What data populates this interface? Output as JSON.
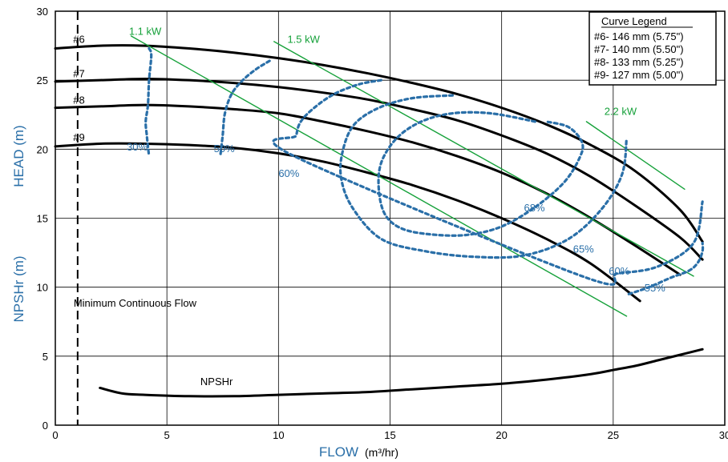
{
  "chart_data": {
    "type": "line",
    "title": "",
    "xlabel": "FLOW",
    "xlabel_unit": "(m³/hr)",
    "ylabel_head": "HEAD (m)",
    "ylabel_npsh": "NPSHr (m)",
    "xlim": [
      0,
      30
    ],
    "ylim": [
      0,
      30
    ],
    "x_ticks": [
      "0",
      "5",
      "10",
      "15",
      "20",
      "25",
      "30"
    ],
    "y_ticks": [
      "0",
      "5",
      "10",
      "15",
      "20",
      "25",
      "30"
    ],
    "grid": true,
    "legend": {
      "title": "Curve Legend",
      "placement": "top-right",
      "entries": [
        "#6- 146 mm (5.75\")",
        "#7- 140 mm (5.50\")",
        "#8- 133 mm (5.25\")",
        "#9- 127 mm (5.00\")"
      ]
    },
    "min_flow": {
      "x": 1.0,
      "label": "Minimum Continuous Flow"
    },
    "series": [
      {
        "name": "#6",
        "kind": "head",
        "color": "#000000",
        "x": [
          0,
          2,
          4,
          6,
          8,
          10,
          12,
          14,
          16,
          18,
          20,
          22,
          24,
          26,
          28,
          29
        ],
        "y": [
          27.3,
          27.5,
          27.5,
          27.3,
          27.0,
          26.6,
          26.1,
          25.5,
          24.8,
          24.0,
          23.0,
          21.8,
          20.3,
          18.4,
          15.6,
          13.3
        ]
      },
      {
        "name": "#7",
        "kind": "head",
        "color": "#000000",
        "x": [
          0,
          2,
          4,
          6,
          8,
          10,
          12,
          14,
          16,
          18,
          20,
          22,
          24,
          26,
          28,
          29
        ],
        "y": [
          24.9,
          25.0,
          25.1,
          25.0,
          24.8,
          24.5,
          24.1,
          23.6,
          22.9,
          22.1,
          21.0,
          19.7,
          18.0,
          15.9,
          13.6,
          12.0
        ]
      },
      {
        "name": "#8",
        "kind": "head",
        "color": "#000000",
        "x": [
          0,
          2,
          4,
          6,
          8,
          10,
          12,
          14,
          16,
          18,
          20,
          22,
          24,
          26,
          28
        ],
        "y": [
          23.0,
          23.1,
          23.2,
          23.1,
          22.9,
          22.6,
          22.0,
          21.3,
          20.5,
          19.5,
          18.3,
          16.8,
          15.0,
          13.0,
          10.9
        ]
      },
      {
        "name": "#9",
        "kind": "head",
        "color": "#000000",
        "x": [
          0,
          2,
          4,
          6,
          8,
          10,
          12,
          14,
          16,
          18,
          20,
          22,
          24,
          26.2
        ],
        "y": [
          20.2,
          20.4,
          20.4,
          20.3,
          20.1,
          19.7,
          19.1,
          18.3,
          17.4,
          16.3,
          15.0,
          13.5,
          11.7,
          9.0
        ]
      },
      {
        "name": "NPSHr",
        "kind": "npsh",
        "color": "#000000",
        "x": [
          2,
          3,
          4,
          6,
          8,
          10,
          12,
          14,
          16,
          18,
          20,
          22,
          24,
          25,
          26,
          27,
          28,
          29
        ],
        "y": [
          2.7,
          2.3,
          2.2,
          2.1,
          2.1,
          2.2,
          2.3,
          2.4,
          2.6,
          2.8,
          3.0,
          3.3,
          3.7,
          4.0,
          4.3,
          4.7,
          5.1,
          5.5
        ]
      },
      {
        "name": "1.1 kW",
        "kind": "power",
        "color": "#16a13a",
        "x": [
          3.4,
          25.6
        ],
        "y": [
          28.2,
          7.9
        ]
      },
      {
        "name": "1.5 kW",
        "kind": "power",
        "color": "#16a13a",
        "x": [
          9.8,
          28.6
        ],
        "y": [
          27.8,
          10.8
        ]
      },
      {
        "name": "2.2 kW",
        "kind": "power",
        "color": "#16a13a",
        "x": [
          23.8,
          28.2
        ],
        "y": [
          22.0,
          17.1
        ]
      },
      {
        "name": "30%",
        "kind": "efficiency",
        "color": "#2a6fa8",
        "x": [
          4.2,
          4.3,
          4.2,
          4.15,
          4.05,
          4.1,
          4.15,
          4.2
        ],
        "y": [
          27.3,
          26.8,
          25.0,
          23.2,
          22.0,
          21.0,
          20.2,
          19.5
        ]
      },
      {
        "name": "50%",
        "kind": "efficiency",
        "color": "#2a6fa8",
        "x": [
          9.6,
          9.0,
          8.4,
          7.9,
          7.6,
          7.5,
          7.4
        ],
        "y": [
          26.4,
          25.8,
          25.0,
          24.0,
          22.6,
          21.0,
          19.6
        ]
      },
      {
        "name": "60%",
        "kind": "efficiency",
        "color": "#2a6fa8",
        "x": [
          14.6,
          13.6,
          12.5,
          11.6,
          11.0,
          10.8,
          10.7,
          23.6,
          25.2,
          27.0,
          28.6,
          29.0
        ],
        "y": [
          25.0,
          24.7,
          24.0,
          23.0,
          22.0,
          21.0,
          19.5,
          10.8,
          11.0,
          11.5,
          13.2,
          16.2
        ]
      },
      {
        "name": "65%",
        "kind": "efficiency",
        "color": "#2a6fa8",
        "x": [
          17.8,
          16.0,
          14.5,
          13.4,
          12.9,
          12.8,
          13.3,
          14.6,
          16.6,
          18.8,
          21.0,
          23.0,
          24.5,
          25.4,
          25.6
        ],
        "y": [
          23.9,
          23.7,
          23.0,
          21.8,
          20.0,
          18.0,
          15.8,
          13.5,
          12.6,
          12.2,
          12.3,
          13.5,
          15.7,
          18.2,
          20.8
        ]
      },
      {
        "name": "68%",
        "kind": "efficiency",
        "color": "#2a6fa8",
        "x": [
          21.5,
          19.5,
          17.8,
          16.4,
          15.3,
          14.6,
          14.5,
          14.8,
          15.6,
          17.0,
          18.5,
          20.0,
          21.5,
          22.8,
          23.5,
          23.6,
          23.0,
          22.0
        ],
        "y": [
          22.0,
          22.6,
          22.6,
          22.0,
          20.8,
          19.0,
          17.0,
          15.2,
          14.2,
          13.8,
          13.8,
          14.4,
          15.8,
          17.6,
          19.4,
          20.5,
          21.6,
          22.0
        ]
      },
      {
        "name": "55%",
        "kind": "efficiency",
        "color": "#2a6fa8",
        "x": [
          25.7,
          26.6,
          27.6,
          28.4,
          28.8,
          29.0,
          29.0
        ],
        "y": [
          9.5,
          10.0,
          10.7,
          11.2,
          11.8,
          12.6,
          13.2
        ]
      }
    ],
    "curve_labels": [
      {
        "text": "#6",
        "x": 0.8,
        "y": 27.7
      },
      {
        "text": "#7",
        "x": 0.8,
        "y": 25.2
      },
      {
        "text": "#8",
        "x": 0.8,
        "y": 23.3
      },
      {
        "text": "#9",
        "x": 0.8,
        "y": 20.6
      },
      {
        "text": "NPSHr",
        "x": 6.5,
        "y": 2.9
      }
    ],
    "efficiency_labels": [
      {
        "text": "30%",
        "x": 3.2,
        "y": 19.9
      },
      {
        "text": "50%",
        "x": 7.1,
        "y": 19.8
      },
      {
        "text": "60%",
        "x": 10.0,
        "y": 18.0
      },
      {
        "text": "68%",
        "x": 21.0,
        "y": 15.5
      },
      {
        "text": "65%",
        "x": 23.2,
        "y": 12.5
      },
      {
        "text": "60%",
        "x": 24.8,
        "y": 10.9
      },
      {
        "text": "55%",
        "x": 26.4,
        "y": 9.7
      }
    ],
    "power_labels": [
      {
        "text": "1.1 kW",
        "x": 3.3,
        "y": 28.3
      },
      {
        "text": "1.5 kW",
        "x": 10.4,
        "y": 27.7
      },
      {
        "text": "2.2 kW",
        "x": 24.6,
        "y": 22.5
      }
    ]
  }
}
